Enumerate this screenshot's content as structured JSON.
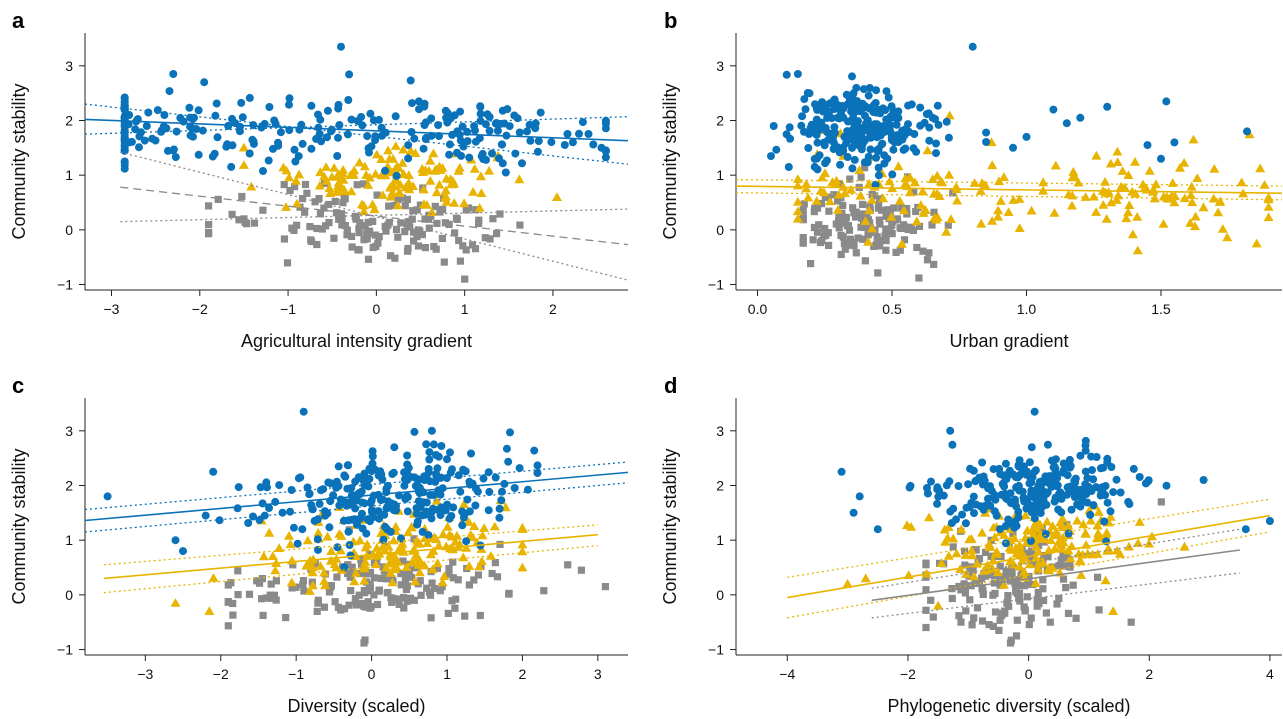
{
  "colors": {
    "blue": "#0a72b9",
    "yellow": "#e8b400",
    "grey": "#8a8a8a"
  },
  "chart_data": [
    {
      "panel": "a",
      "type": "scatter",
      "xlabel": "Agricultural intensity gradient",
      "ylabel": "Community stability",
      "xlim": [
        -3.3,
        2.85
      ],
      "ylim": [
        -1.1,
        3.6
      ],
      "xticks": [
        -3,
        -2,
        -1,
        0,
        1,
        2
      ],
      "yticks": [
        -1,
        0,
        1,
        2,
        3
      ],
      "tick_labels_x": [
        "−3",
        "−2",
        "−1",
        "0",
        "1",
        "2"
      ],
      "tick_labels_y": [
        "−1",
        "0",
        "1",
        "2",
        "3"
      ],
      "series": [
        {
          "color": "blue",
          "marker": "circle",
          "cx": [
            -2.3,
            0.85
          ],
          "sx": 1.05,
          "cy": 1.85,
          "sy": 0.33,
          "slope": -0.07,
          "xmin": -2.85,
          "xmax": 2.6,
          "n": 260,
          "extras": [
            [
              -0.4,
              3.35
            ],
            [
              -2.3,
              2.85
            ],
            [
              -1.95,
              2.7
            ],
            [
              -2.6,
              1.9
            ],
            [
              -2.8,
              2.1
            ],
            [
              2.55,
              1.5
            ],
            [
              -2.3,
              1.45
            ]
          ]
        },
        {
          "color": "yellow",
          "marker": "triangle",
          "cx": [
            0.2
          ],
          "sx": 0.7,
          "cy": 0.95,
          "sy": 0.3,
          "slope": 0,
          "xmin": -1.5,
          "xmax": 2.5,
          "n": 130,
          "extras": []
        },
        {
          "color": "grey",
          "marker": "square",
          "cx": [
            0.0
          ],
          "sx": 0.8,
          "cy": 0.12,
          "sy": 0.32,
          "slope": -0.1,
          "xmin": -1.9,
          "xmax": 2.5,
          "n": 150,
          "extras": [
            [
              1.0,
              -0.9
            ],
            [
              -1.9,
              -0.05
            ],
            [
              -1.5,
              0.2
            ]
          ]
        }
      ],
      "fits": [
        {
          "color": "blue",
          "style": "solid",
          "x": [
            -3.3,
            2.85
          ],
          "y": [
            2.02,
            1.63
          ]
        },
        {
          "color": "blue",
          "style": "dotted",
          "x": [
            -3.3,
            2.85
          ],
          "y": [
            2.3,
            1.2
          ]
        },
        {
          "color": "blue",
          "style": "dotted",
          "x": [
            -3.3,
            2.85
          ],
          "y": [
            1.75,
            2.07
          ]
        },
        {
          "color": "grey",
          "style": "dashed",
          "x": [
            -2.9,
            2.85
          ],
          "y": [
            0.78,
            -0.27
          ]
        },
        {
          "color": "grey",
          "style": "dotted",
          "x": [
            -2.9,
            2.85
          ],
          "y": [
            1.42,
            -0.92
          ]
        },
        {
          "color": "grey",
          "style": "dotted",
          "x": [
            -2.9,
            2.85
          ],
          "y": [
            0.15,
            0.38
          ]
        }
      ]
    },
    {
      "panel": "b",
      "type": "scatter",
      "xlabel": "Urban gradient",
      "ylabel": "Community stability",
      "xlim": [
        -0.08,
        1.95
      ],
      "ylim": [
        -1.1,
        3.6
      ],
      "xticks": [
        0.0,
        0.5,
        1.0,
        1.5
      ],
      "yticks": [
        -1,
        0,
        1,
        2,
        3
      ],
      "tick_labels_x": [
        "0.0",
        "0.5",
        "1.0",
        "1.5"
      ],
      "tick_labels_y": [
        "−1",
        "0",
        "1",
        "2",
        "3"
      ],
      "series": [
        {
          "color": "blue",
          "marker": "circle",
          "cx": [
            0.35,
            0.45
          ],
          "sx": 0.12,
          "cy": 1.9,
          "sy": 0.38,
          "slope": 0,
          "xmin": 0.05,
          "xmax": 0.85,
          "n": 250,
          "extras": [
            [
              0.8,
              3.35
            ],
            [
              1.1,
              2.2
            ],
            [
              1.2,
              2.05
            ],
            [
              1.3,
              2.25
            ],
            [
              1.52,
              2.35
            ],
            [
              1.55,
              1.6
            ],
            [
              1.82,
              1.8
            ],
            [
              1.45,
              1.55
            ],
            [
              1.5,
              1.3
            ],
            [
              1.0,
              1.7
            ],
            [
              0.95,
              1.5
            ],
            [
              1.15,
              1.95
            ],
            [
              0.06,
              1.9
            ],
            [
              0.15,
              2.85
            ]
          ]
        },
        {
          "color": "yellow",
          "marker": "triangle",
          "cx": [
            0.55,
            1.45
          ],
          "sx": 0.25,
          "cy": 0.75,
          "sy": 0.38,
          "slope": 0,
          "xmin": 0.15,
          "xmax": 1.9,
          "n": 180,
          "extras": [
            [
              0.87,
              1.6
            ]
          ]
        },
        {
          "color": "grey",
          "marker": "square",
          "cx": [
            0.4
          ],
          "sx": 0.13,
          "cy": 0.15,
          "sy": 0.35,
          "slope": 0,
          "xmin": 0.17,
          "xmax": 0.82,
          "n": 150,
          "extras": [
            [
              0.6,
              -0.88
            ]
          ]
        }
      ],
      "fits": [
        {
          "color": "yellow",
          "style": "solid",
          "x": [
            -0.08,
            1.95
          ],
          "y": [
            0.8,
            0.67
          ]
        },
        {
          "color": "yellow",
          "style": "dotted",
          "x": [
            -0.08,
            1.95
          ],
          "y": [
            0.92,
            0.8
          ]
        },
        {
          "color": "yellow",
          "style": "dotted",
          "x": [
            -0.08,
            1.95
          ],
          "y": [
            0.68,
            0.55
          ]
        }
      ]
    },
    {
      "panel": "c",
      "type": "scatter",
      "xlabel": "Diversity (scaled)",
      "ylabel": "Community stability",
      "xlim": [
        -3.8,
        3.4
      ],
      "ylim": [
        -1.1,
        3.6
      ],
      "xticks": [
        -3,
        -2,
        -1,
        0,
        1,
        2,
        3
      ],
      "yticks": [
        -1,
        0,
        1,
        2,
        3
      ],
      "tick_labels_x": [
        "−3",
        "−2",
        "−1",
        "0",
        "1",
        "2",
        "3"
      ],
      "tick_labels_y": [
        "−1",
        "0",
        "1",
        "2",
        "3"
      ],
      "series": [
        {
          "color": "blue",
          "marker": "circle",
          "cx": [
            0.3
          ],
          "sx": 0.85,
          "cy": 1.85,
          "sy": 0.38,
          "slope": 0.12,
          "xmin": -2.7,
          "xmax": 2.2,
          "n": 260,
          "extras": [
            [
              -0.9,
              3.35
            ],
            [
              -3.5,
              1.8
            ],
            [
              -2.6,
              1.0
            ],
            [
              -2.5,
              0.8
            ],
            [
              -2.1,
              2.25
            ],
            [
              -2.2,
              1.45
            ],
            [
              0.8,
              3.0
            ]
          ]
        },
        {
          "color": "yellow",
          "marker": "triangle",
          "cx": [
            0.2
          ],
          "sx": 0.9,
          "cy": 0.85,
          "sy": 0.35,
          "slope": 0.08,
          "xmin": -2.2,
          "xmax": 2.0,
          "n": 170,
          "extras": [
            [
              -2.6,
              -0.15
            ],
            [
              -2.15,
              -0.3
            ]
          ]
        },
        {
          "color": "grey",
          "marker": "square",
          "cx": [
            0.0
          ],
          "sx": 1.0,
          "cy": 0.15,
          "sy": 0.33,
          "slope": 0.05,
          "xmin": -1.9,
          "xmax": 3.1,
          "n": 160,
          "extras": [
            [
              -0.1,
              -0.88
            ],
            [
              3.1,
              0.15
            ],
            [
              2.6,
              0.55
            ]
          ]
        }
      ],
      "fits": [
        {
          "color": "blue",
          "style": "solid",
          "x": [
            -3.8,
            3.4
          ],
          "y": [
            1.36,
            2.24
          ]
        },
        {
          "color": "blue",
          "style": "dotted",
          "x": [
            -3.8,
            3.4
          ],
          "y": [
            1.15,
            2.05
          ]
        },
        {
          "color": "blue",
          "style": "dotted",
          "x": [
            -3.8,
            3.4
          ],
          "y": [
            1.56,
            2.43
          ]
        },
        {
          "color": "yellow",
          "style": "solid",
          "x": [
            -3.55,
            3.0
          ],
          "y": [
            0.3,
            1.1
          ]
        },
        {
          "color": "yellow",
          "style": "dotted",
          "x": [
            -3.55,
            3.0
          ],
          "y": [
            0.55,
            1.28
          ]
        },
        {
          "color": "yellow",
          "style": "dotted",
          "x": [
            -3.55,
            3.0
          ],
          "y": [
            0.04,
            0.9
          ]
        }
      ]
    },
    {
      "panel": "d",
      "type": "scatter",
      "xlabel": "Phylogenetic diversity (scaled)",
      "ylabel": "Community stability",
      "xlim": [
        -4.85,
        4.2
      ],
      "ylim": [
        -1.1,
        3.6
      ],
      "xticks": [
        -4,
        -2,
        0,
        2,
        4
      ],
      "yticks": [
        -1,
        0,
        1,
        2,
        3
      ],
      "tick_labels_x": [
        "−4",
        "−2",
        "0",
        "2",
        "4"
      ],
      "tick_labels_y": [
        "−1",
        "0",
        "1",
        "2",
        "3"
      ],
      "series": [
        {
          "color": "blue",
          "marker": "circle",
          "cx": [
            0.1
          ],
          "sx": 0.8,
          "cy": 1.9,
          "sy": 0.35,
          "slope": 0.03,
          "xmin": -3.2,
          "xmax": 3.0,
          "n": 260,
          "extras": [
            [
              0.1,
              3.35
            ],
            [
              -3.1,
              2.25
            ],
            [
              -2.8,
              1.8
            ],
            [
              -2.9,
              1.5
            ],
            [
              -2.5,
              1.2
            ],
            [
              2.9,
              2.1
            ],
            [
              4.0,
              1.35
            ],
            [
              3.6,
              1.2
            ],
            [
              -1.3,
              3.0
            ]
          ]
        },
        {
          "color": "yellow",
          "marker": "triangle",
          "cx": [
            0.2
          ],
          "sx": 0.9,
          "cy": 0.95,
          "sy": 0.33,
          "slope": 0.1,
          "xmin": -2.8,
          "xmax": 3.5,
          "n": 170,
          "extras": [
            [
              -2.7,
              0.3
            ],
            [
              -3.0,
              0.2
            ],
            [
              -1.5,
              -0.2
            ],
            [
              1.4,
              -0.3
            ]
          ]
        },
        {
          "color": "grey",
          "marker": "square",
          "cx": [
            -0.3
          ],
          "sx": 0.7,
          "cy": 0.2,
          "sy": 0.4,
          "slope": 0.15,
          "xmin": -1.7,
          "xmax": 3.3,
          "n": 160,
          "extras": [
            [
              -0.3,
              -0.88
            ],
            [
              2.2,
              1.7
            ],
            [
              1.7,
              -0.5
            ],
            [
              -0.2,
              -0.75
            ]
          ]
        }
      ],
      "fits": [
        {
          "color": "yellow",
          "style": "solid",
          "x": [
            -4.0,
            4.0
          ],
          "y": [
            -0.05,
            1.45
          ]
        },
        {
          "color": "yellow",
          "style": "dotted",
          "x": [
            -4.0,
            4.0
          ],
          "y": [
            0.32,
            1.75
          ]
        },
        {
          "color": "yellow",
          "style": "dotted",
          "x": [
            -4.0,
            4.0
          ],
          "y": [
            -0.42,
            1.15
          ]
        },
        {
          "color": "grey",
          "style": "solid",
          "x": [
            -2.6,
            3.5
          ],
          "y": [
            -0.1,
            0.82
          ]
        },
        {
          "color": "grey",
          "style": "dotted",
          "x": [
            -2.6,
            3.5
          ],
          "y": [
            0.12,
            1.2
          ]
        },
        {
          "color": "grey",
          "style": "dotted",
          "x": [
            -2.6,
            3.5
          ],
          "y": [
            -0.42,
            0.4
          ]
        }
      ]
    }
  ]
}
